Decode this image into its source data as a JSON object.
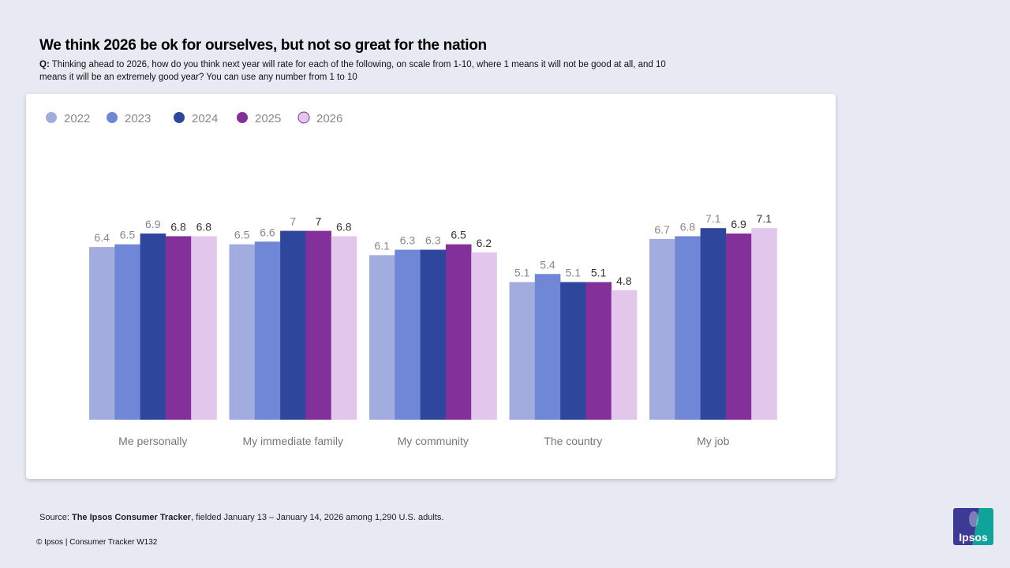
{
  "title": "We think 2026 be ok for ourselves, but not so great for the nation",
  "question_prefix": "Q:",
  "question": "Thinking ahead to 2026, how do you think next year will rate for each of the following, on scale from 1-10, where 1 means it will not be good at all, and 10 means it will be an extremely good year? You can use any number from 1 to 10",
  "source_prefix": "Source: ",
  "source_bold": "The Ipsos Consumer Tracker",
  "source_rest": ", fielded January 13 – January 14, 2026 among 1,290 U.S. adults.",
  "copyright": "© Ipsos | Consumer Tracker W132",
  "logo_text": "Ipsos",
  "chart_data": {
    "type": "bar",
    "title": "",
    "xlabel": "",
    "ylabel": "",
    "ylim": [
      0,
      10
    ],
    "grid": false,
    "legend_position": "top-left",
    "categories": [
      "Me personally",
      "My immediate family",
      "My community",
      "The country",
      "My job"
    ],
    "series": [
      {
        "name": "2022",
        "color": "#a2acdf",
        "label_color": "#888888",
        "values": [
          6.4,
          6.5,
          6.1,
          5.1,
          6.7
        ]
      },
      {
        "name": "2023",
        "color": "#7086d6",
        "label_color": "#888888",
        "values": [
          6.5,
          6.6,
          6.3,
          5.4,
          6.8
        ]
      },
      {
        "name": "2024",
        "color": "#2e479c",
        "label_color": "#888888",
        "values": [
          6.9,
          7,
          6.3,
          5.1,
          7.1
        ]
      },
      {
        "name": "2025",
        "color": "#84309b",
        "label_color": "#333333",
        "values": [
          6.8,
          7,
          6.5,
          5.1,
          6.9
        ]
      },
      {
        "name": "2026",
        "color": "#e2c6ec",
        "label_color": "#333333",
        "values": [
          6.8,
          6.8,
          6.2,
          4.8,
          7.1
        ]
      }
    ]
  }
}
